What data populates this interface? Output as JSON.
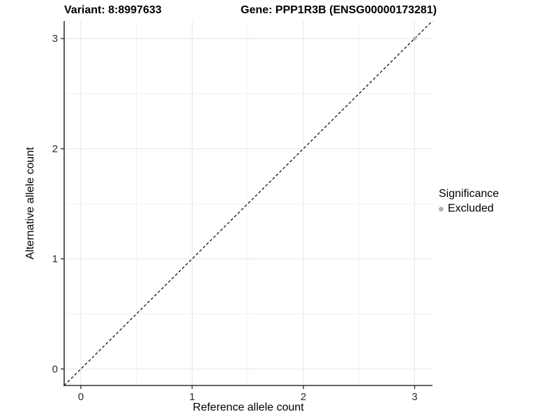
{
  "chart_data": {
    "type": "scatter",
    "title_left": "Variant: 8:8997633",
    "title_right": "Gene: PPP1R3B (ENSG00000173281)",
    "xlabel": "Reference allele count",
    "ylabel": "Alternative allele count",
    "xlim": [
      -0.15,
      3.16
    ],
    "ylim": [
      -0.15,
      3.16
    ],
    "x_ticks": [
      0,
      1,
      2,
      3
    ],
    "y_ticks": [
      0,
      1,
      2,
      3
    ],
    "x_minor_ticks": [
      0.5,
      1.5,
      2.5
    ],
    "y_minor_ticks": [
      0.5,
      1.5,
      2.5
    ],
    "grid": "major and minor gridlines, light gray on white",
    "identity_line": {
      "style": "dashed",
      "color": "#000000",
      "equation": "y = x"
    },
    "series": [
      {
        "name": "Excluded",
        "color": "#b4b4b4",
        "points": [
          {
            "x": 3,
            "y": 3
          }
        ]
      }
    ],
    "legend": {
      "title": "Significance",
      "position": "right",
      "entries": [
        {
          "label": "Excluded",
          "color": "#b4b4b4",
          "marker": "circle"
        }
      ]
    }
  },
  "colors": {
    "background": "#ffffff",
    "axis_line": "#333333",
    "tick_label": "#2b2b2b",
    "grid_major": "#e5e5e5",
    "grid_minor": "#f1f1f1",
    "point": "#b4b4b4"
  }
}
